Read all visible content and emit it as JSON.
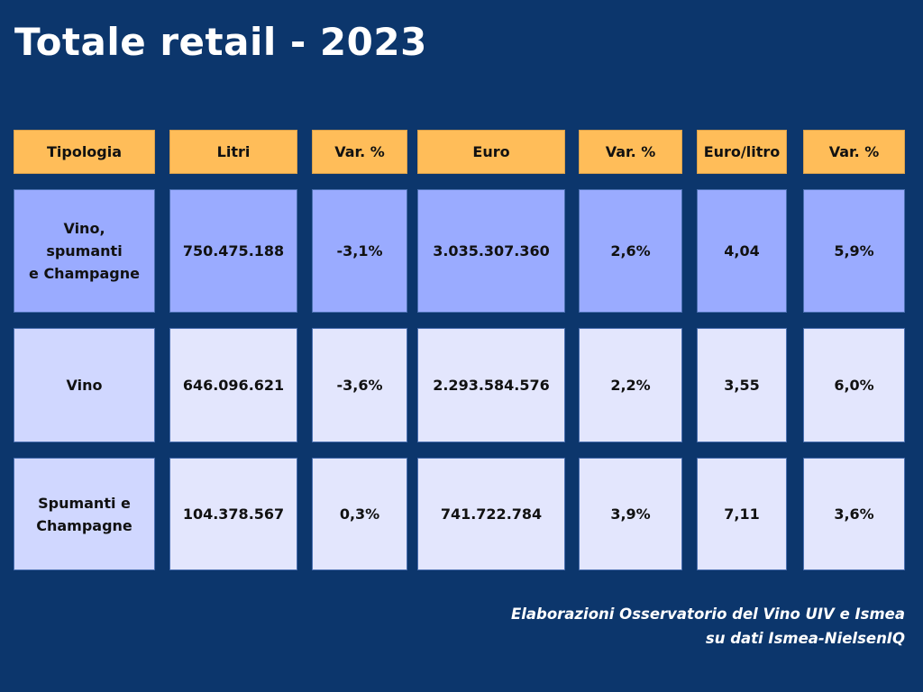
{
  "title": "Totale retail - 2023",
  "chart_data": {
    "type": "table",
    "title": "Totale retail - 2023",
    "columns": [
      "Tipologia",
      "Litri",
      "Var. %",
      "Euro",
      "Var. %",
      "Euro/litro",
      "Var. %"
    ],
    "rows": [
      [
        "Vino,\nspumanti\ne Champagne",
        "750.475.188",
        "-3,1%",
        "3.035.307.360",
        "2,6%",
        "4,04",
        "5,9%"
      ],
      [
        "Vino",
        "646.096.621",
        "-3,6%",
        "2.293.584.576",
        "2,2%",
        "3,55",
        "6,0%"
      ],
      [
        "Spumanti e\nChampagne",
        "104.378.567",
        "0,3%",
        "741.722.784",
        "3,9%",
        "7,11",
        "3,6%"
      ]
    ]
  },
  "source": {
    "line1": "Elaborazioni Osservatorio del Vino UIV e Ismea",
    "line2": "su dati Ismea-NielsenIQ"
  },
  "colors": {
    "background": "#0c366c",
    "header": "#ffbd59",
    "total_row": "#9aabff",
    "rows": "#e3e6fd"
  }
}
